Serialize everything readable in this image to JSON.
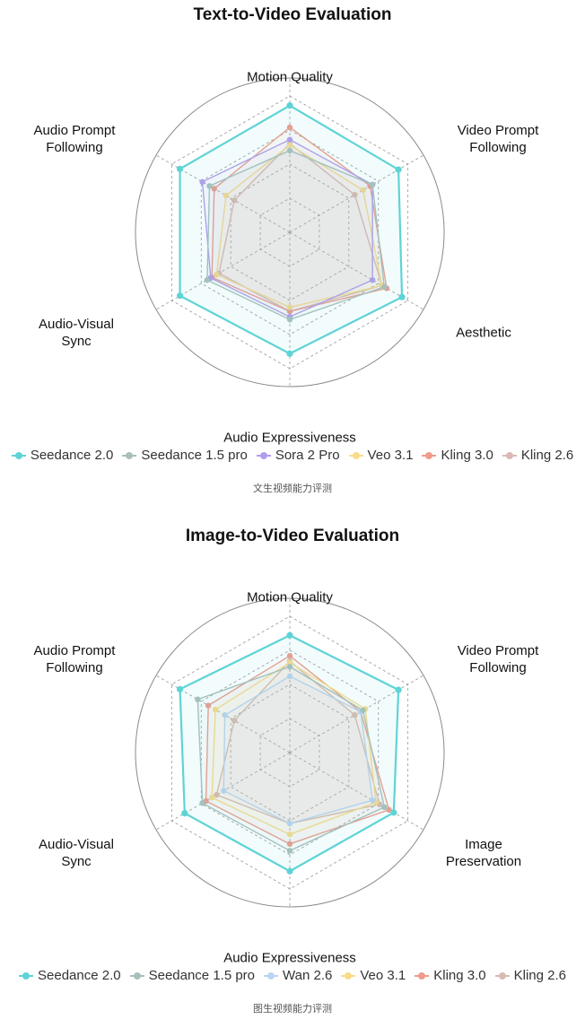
{
  "chart_data": [
    {
      "type": "radar",
      "title": "Text-to-Video Evaluation",
      "caption": "文生视频能力评测",
      "axes": [
        "Motion Quality",
        "Video Prompt Following",
        "Aesthetic",
        "Audio Expressiveness",
        "Audio-Visual Sync",
        "Audio Prompt Following"
      ],
      "axis_labels_display": [
        [
          "Motion Quality"
        ],
        [
          "Video Prompt",
          "Following"
        ],
        [
          "Aesthetic"
        ],
        [
          "Audio Expressiveness"
        ],
        [
          "Audio-Visual",
          "Sync"
        ],
        [
          "Audio Prompt",
          "Following"
        ]
      ],
      "range": [
        0,
        1
      ],
      "grid": true,
      "legend_position": "bottom",
      "series": [
        {
          "name": "Seedance 2.0",
          "color": "#5fd3d6",
          "values": [
            0.93,
            0.92,
            0.95,
            0.89,
            0.93,
            0.93
          ]
        },
        {
          "name": "Seedance 1.5 pro",
          "color": "#a9bfbc",
          "values": [
            0.6,
            0.7,
            0.8,
            0.64,
            0.7,
            0.68
          ]
        },
        {
          "name": "Sora 2 Pro",
          "color": "#b49cec",
          "values": [
            0.68,
            0.7,
            0.7,
            0.62,
            0.67,
            0.74
          ]
        },
        {
          "name": "Veo 3.1",
          "color": "#f8dc8a",
          "values": [
            0.64,
            0.62,
            0.78,
            0.55,
            0.62,
            0.54
          ]
        },
        {
          "name": "Kling 3.0",
          "color": "#ef9c8c",
          "values": [
            0.77,
            0.68,
            0.82,
            0.58,
            0.66,
            0.64
          ]
        },
        {
          "name": "Kling 2.6",
          "color": "#d9bab4",
          "values": [
            0.65,
            0.55,
            0.78,
            0.58,
            0.6,
            0.47
          ]
        }
      ]
    },
    {
      "type": "radar",
      "title": "Image-to-Video Evaluation",
      "caption": "图生视频能力评测",
      "axes": [
        "Motion Quality",
        "Video Prompt Following",
        "Image Preservation",
        "Audio Expressiveness",
        "Audio-Visual Sync",
        "Audio Prompt Following"
      ],
      "axis_labels_display": [
        [
          "Motion Quality"
        ],
        [
          "Video Prompt",
          "Following"
        ],
        [
          "Image",
          "Preservation"
        ],
        [
          "Audio Expressiveness"
        ],
        [
          "Audio-Visual",
          "Sync"
        ],
        [
          "Audio Prompt",
          "Following"
        ]
      ],
      "range": [
        0,
        1
      ],
      "grid": true,
      "legend_position": "bottom",
      "series": [
        {
          "name": "Seedance 2.0",
          "color": "#5fd3d6",
          "values": [
            0.86,
            0.92,
            0.88,
            0.87,
            0.89,
            0.93
          ]
        },
        {
          "name": "Seedance 1.5 pro",
          "color": "#a9bfbc",
          "values": [
            0.63,
            0.62,
            0.8,
            0.72,
            0.74,
            0.78
          ]
        },
        {
          "name": "Wan 2.6",
          "color": "#bcd4f2",
          "values": [
            0.56,
            0.6,
            0.7,
            0.52,
            0.56,
            0.55
          ]
        },
        {
          "name": "Veo 3.1",
          "color": "#f8dc8a",
          "values": [
            0.66,
            0.64,
            0.73,
            0.6,
            0.66,
            0.63
          ]
        },
        {
          "name": "Kling 3.0",
          "color": "#ef9c8c",
          "values": [
            0.71,
            0.6,
            0.84,
            0.67,
            0.71,
            0.69
          ]
        },
        {
          "name": "Kling 2.6",
          "color": "#d9bab4",
          "values": [
            0.67,
            0.55,
            0.76,
            0.52,
            0.62,
            0.47
          ]
        }
      ]
    }
  ]
}
